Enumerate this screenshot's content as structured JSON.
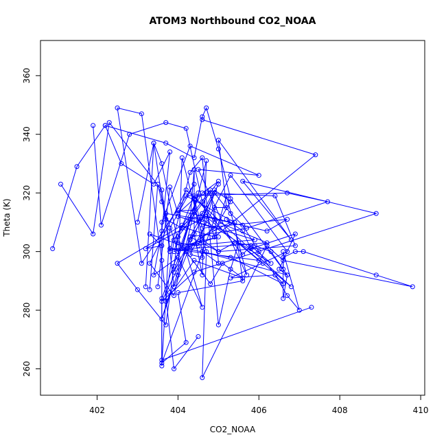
{
  "chart_data": {
    "type": "line",
    "title": "ATOM3 Northbound CO2_NOAA",
    "xlabel": "CO2_NOAA",
    "ylabel": "Theta (K)",
    "xlim": [
      400.6,
      410.1
    ],
    "ylim": [
      251,
      372
    ],
    "xticks": [
      402,
      404,
      406,
      408,
      410
    ],
    "yticks": [
      260,
      280,
      300,
      320,
      340,
      360
    ],
    "grid": false,
    "legend": "none",
    "series_color": "#0000ff",
    "series": [
      {
        "x": [
          402.2,
          403.7,
          404.4,
          404.6,
          404.7,
          405.0,
          405.3,
          406.7,
          404.6,
          404.6,
          404.3,
          405.3,
          406.7,
          405.3,
          406.4,
          406.6,
          405.3,
          404.2,
          403.8,
          406.0,
          404.6,
          402.5,
          403.0,
          403.7,
          403.9,
          404.0,
          404.4,
          405.6,
          405.8,
          406.3,
          404.6,
          403.7,
          403.9,
          404.3,
          404.9,
          404.0,
          405.9,
          404.3,
          405.0,
          404.1,
          403.3,
          403.6,
          403.2,
          404.7,
          405.3,
          404.6,
          404.5,
          404.4,
          404.0,
          406.2,
          406.7,
          404.6,
          404.4,
          404.7,
          406.4,
          406.9,
          405.0,
          404.3,
          404.9,
          405.3,
          405.0,
          406.2,
          404.3,
          403.9,
          404.1,
          404.2,
          404.9,
          407.4,
          404.6
        ],
        "y": [
          343,
          337,
          332,
          346,
          349,
          335,
          318,
          292,
          300,
          298,
          299,
          326,
          300,
          291,
          292,
          289,
          298,
          301,
          301,
          297,
          313,
          296,
          287,
          275,
          295,
          305,
          319,
          299,
          302,
          296,
          311,
          313,
          288,
          302,
          308,
          312,
          304,
          302,
          305,
          302,
          306,
          302,
          301,
          312,
          310,
          305,
          311,
          314,
          314,
          307,
          311,
          308,
          318,
          320,
          319,
          302,
          300,
          305,
          321,
          317,
          310,
          303,
          301,
          300,
          309,
          308,
          305,
          333,
          345
        ]
      },
      {
        "x": [
          400.9,
          401.5,
          402.2,
          402.6,
          403.4,
          403.8,
          403.6,
          403.4,
          404.0,
          404.6,
          404.2,
          404.8,
          405.1,
          405.6,
          404.4,
          403.7,
          403.9,
          404.6,
          405.0,
          404.0
        ],
        "y": [
          301,
          329,
          343,
          330,
          323,
          334,
          307,
          292,
          298,
          281,
          300,
          289,
          296,
          291,
          297,
          283,
          304,
          320,
          324,
          305
        ]
      },
      {
        "x": [
          401.1,
          401.9,
          402.3,
          403.6,
          403.7,
          404.1,
          404.8,
          404.9,
          403.6,
          404.2,
          404.0,
          405.6,
          405.4,
          404.2,
          406.7,
          407.7,
          405.7,
          404.3,
          403.6,
          403.8
        ],
        "y": [
          323,
          306,
          344,
          321,
          311,
          308,
          321,
          311,
          262,
          269,
          286,
          290,
          310,
          319,
          320,
          317,
          308,
          305,
          277,
          286
        ]
      },
      {
        "x": [
          401.9,
          402.1,
          402.8,
          403.7,
          404.2,
          404.6,
          404.9,
          405.2,
          405.7,
          404.5,
          406.0,
          404.3,
          403.6,
          403.6,
          403.8,
          404.4,
          403.1,
          402.5,
          403.1,
          403.6,
          403.9,
          404.5
        ],
        "y": [
          343,
          309,
          340,
          344,
          342,
          317,
          305,
          319,
          292,
          328,
          326,
          336,
          310,
          261,
          308,
          323,
          296,
          349,
          347,
          297,
          260,
          271
        ]
      },
      {
        "x": [
          403.0,
          403.4,
          403.6,
          404.0,
          404.5,
          404.9,
          405.3,
          405.6,
          406.0,
          406.4,
          406.7,
          407.0,
          406.6,
          406.6,
          406.7,
          406.5,
          406.9,
          405.8,
          405.6,
          405.2
        ],
        "y": [
          310,
          337,
          330,
          303,
          302,
          320,
          313,
          309,
          300,
          292,
          285,
          280,
          300,
          284,
          292,
          294,
          306,
          301,
          307,
          311
        ]
      },
      {
        "x": [
          403.2,
          403.4,
          403.8,
          404.3,
          404.6,
          405.0,
          405.3,
          405.5,
          406.1,
          406.8,
          404.2,
          403.3,
          403.9,
          404.7,
          404.6,
          404.4,
          404.4,
          404.3,
          403.6,
          403.6,
          407.3
        ],
        "y": [
          288,
          337,
          300,
          327,
          332,
          275,
          294,
          303,
          296,
          288,
          321,
          296,
          285,
          331,
          292,
          306,
          328,
          311,
          284,
          263,
          281
        ]
      },
      {
        "x": [
          403.3,
          403.5,
          403.6,
          404.0,
          404.6,
          405.0,
          405.4,
          405.9,
          406.3,
          406.6,
          406.6,
          406.9,
          407.1,
          408.9,
          409.8,
          406.6,
          406.2,
          404.6,
          404.7,
          404.1,
          404.0
        ],
        "y": [
          287,
          323,
          317,
          300,
          304,
          300,
          303,
          302,
          300,
          294,
          298,
          300,
          300,
          292,
          288,
          297,
          302,
          257,
          300,
          332,
          292
        ]
      },
      {
        "x": [
          403.5,
          403.8,
          404.0,
          404.4,
          404.6,
          405.0,
          404.9,
          405.2,
          405.0,
          406.8,
          405.6,
          408.9,
          404.4,
          403.6,
          405.0,
          404.6,
          404.3,
          403.9,
          404.5,
          404.1
        ],
        "y": [
          288,
          322,
          313,
          318,
          300,
          296,
          315,
          315,
          338,
          304,
          324,
          313,
          293,
          283,
          323,
          311,
          304,
          293,
          320,
          301
        ]
      }
    ]
  }
}
